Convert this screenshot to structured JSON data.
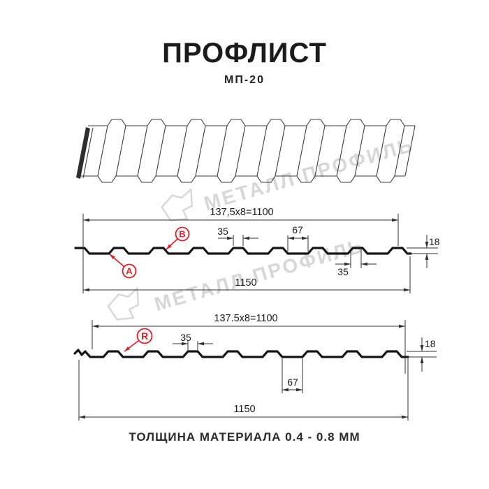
{
  "title": "ПРОФЛИСТ",
  "subtitle": "МП-20",
  "caption": "ТОЛЩИНА МАТЕРИАЛА 0.4 - 0.8 ММ",
  "watermark": {
    "text": "МЕТАЛЛ ПРОФИЛЬ"
  },
  "colors": {
    "accent_red": "#E31E24",
    "line": "#303030",
    "profile_line": "#141414",
    "watermark": "#D7D7D7",
    "text_dark": "#1B1B1B"
  },
  "profile_top": {
    "span_label": "137,5x8=1100",
    "rib_top_width_label": "35",
    "valley_width_label": "67",
    "height_label": "18",
    "rib_base_width_label": "35",
    "overall_width_label": "1150",
    "marker_a": "A",
    "marker_b": "B"
  },
  "profile_bottom": {
    "span_label": "137.5x8=1100",
    "rib_top_width_label": "35",
    "height_label": "18",
    "valley_width_label": "67",
    "overall_width_label": "1150",
    "marker_r": "R"
  }
}
